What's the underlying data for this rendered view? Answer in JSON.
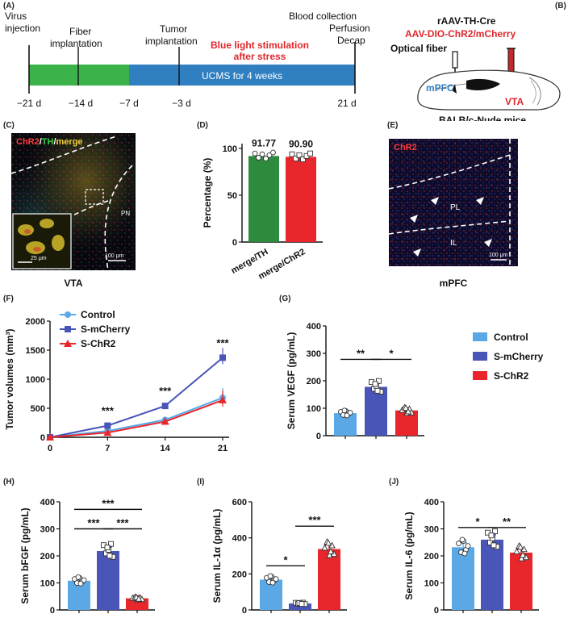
{
  "panels": {
    "A": {
      "label": "(A)",
      "events": [
        {
          "lines": [
            "Virus",
            "injection"
          ],
          "color": "#111111"
        },
        {
          "lines": [
            "Fiber",
            "implantation"
          ],
          "color": "#111111"
        },
        {
          "lines": [
            "Tumor",
            "implantation"
          ],
          "color": "#111111"
        },
        {
          "lines": [
            "Blue light stimulation",
            "after stress"
          ],
          "color": "#e0262b"
        },
        {
          "lines": [
            "Blood collection",
            "Perfusion",
            "Decap"
          ],
          "color": "#111111"
        }
      ],
      "bar_text": "UCMS for 4 weeks",
      "ticks": [
        "−21 d",
        "−14 d",
        "−7 d",
        "−3 d",
        "21 d"
      ],
      "colors": {
        "fiber_phase": "#3bb34a",
        "ucms_phase": "#2f7fc1"
      }
    },
    "B": {
      "label": "(B)",
      "virus1": "rAAV-TH-Cre",
      "virus2": "AAV-DIO-ChR2/mCherry",
      "fiber_label": "Optical fiber",
      "region1": "mPFC",
      "region2": "VTA",
      "mouse": "BALB/c-Nude mice"
    },
    "C": {
      "label": "(C)",
      "title_chr2": "ChR2",
      "title_sep1": "/",
      "title_th": "TH",
      "title_sep2": "/",
      "title_merge": "merge",
      "region_pn": "PN",
      "scale_inset": "25 μm",
      "scale_main": "100 μm",
      "caption": "VTA"
    },
    "E": {
      "label": "(E)",
      "title": "ChR2",
      "region_pl": "PL",
      "region_il": "IL",
      "scale": "100 μm",
      "caption": "mPFC"
    },
    "D": {
      "label": "(D)"
    },
    "F": {
      "label": "(F)"
    },
    "G": {
      "label": "(G)"
    },
    "H": {
      "label": "(H)"
    },
    "I": {
      "label": "(I)"
    },
    "J": {
      "label": "(J)"
    }
  },
  "chart_data": [
    {
      "id": "D",
      "type": "bar",
      "categories": [
        "merge/TH",
        "merge/ChR2"
      ],
      "values": [
        91.77,
        90.9
      ],
      "data_labels": [
        "91.77",
        "90.90"
      ],
      "ylabel": "Percentage (%)",
      "ylim": [
        0,
        105
      ],
      "yticks": [
        0,
        50,
        100
      ],
      "colors": [
        "#2e8b3e",
        "#e8262b"
      ]
    },
    {
      "id": "F",
      "type": "line",
      "x": [
        0,
        7,
        14,
        21
      ],
      "series": [
        {
          "name": "Control",
          "values": [
            0,
            110,
            300,
            680
          ],
          "color": "#5aa9e6",
          "marker": "circle"
        },
        {
          "name": "S-mCherry",
          "values": [
            0,
            200,
            540,
            1370
          ],
          "color": "#4a55b8",
          "marker": "square"
        },
        {
          "name": "S-ChR2",
          "values": [
            0,
            80,
            270,
            640
          ],
          "color": "#e8262b",
          "marker": "triangle"
        }
      ],
      "significance": [
        "***",
        "***",
        "***"
      ],
      "ylabel": "Tumor volumes (mm³)",
      "ylim": [
        0,
        2000
      ],
      "yticks": [
        0,
        500,
        1000,
        1500,
        2000
      ],
      "xticks": [
        0,
        7,
        14,
        21
      ],
      "legend_position": "top-left"
    },
    {
      "id": "G",
      "type": "bar",
      "categories": [
        "Control",
        "S-mCherry",
        "S-ChR2"
      ],
      "values": [
        82,
        178,
        92
      ],
      "significance": [
        {
          "from": 0,
          "to": 1,
          "label": "**"
        },
        {
          "from": 1,
          "to": 2,
          "label": "*"
        }
      ],
      "ylabel": "Serum VEGF (pg/mL)",
      "ylim": [
        0,
        400
      ],
      "yticks": [
        0,
        100,
        200,
        300,
        400
      ],
      "legend": [
        "Control",
        "S-mCherry",
        "S-ChR2"
      ]
    },
    {
      "id": "H",
      "type": "bar",
      "categories": [
        "Control",
        "S-mCherry",
        "S-ChR2"
      ],
      "values": [
        108,
        218,
        43
      ],
      "significance": [
        {
          "from": 0,
          "to": 1,
          "label": "***"
        },
        {
          "from": 1,
          "to": 2,
          "label": "***"
        },
        {
          "from": 0,
          "to": 2,
          "label": "***"
        }
      ],
      "ylabel": "Serum bFGF (pg/mL)",
      "ylim": [
        0,
        400
      ],
      "yticks": [
        0,
        100,
        200,
        300,
        400
      ]
    },
    {
      "id": "I",
      "type": "bar",
      "categories": [
        "Control",
        "S-mCherry",
        "S-ChR2"
      ],
      "values": [
        168,
        36,
        338
      ],
      "significance": [
        {
          "from": 0,
          "to": 1,
          "label": "*"
        },
        {
          "from": 1,
          "to": 2,
          "label": "***"
        }
      ],
      "ylabel": "Serum IL-1α (pg/mL)",
      "ylim": [
        0,
        600
      ],
      "yticks": [
        0,
        200,
        400,
        600
      ]
    },
    {
      "id": "J",
      "type": "bar",
      "categories": [
        "Control",
        "S-mCherry",
        "S-ChR2"
      ],
      "values": [
        232,
        260,
        212
      ],
      "significance": [
        {
          "from": 0,
          "to": 1,
          "label": "*"
        },
        {
          "from": 1,
          "to": 2,
          "label": "**"
        }
      ],
      "ylabel": "Serum IL-6 (pg/mL)",
      "ylim": [
        0,
        400
      ],
      "yticks": [
        0,
        100,
        200,
        300,
        400
      ]
    }
  ]
}
